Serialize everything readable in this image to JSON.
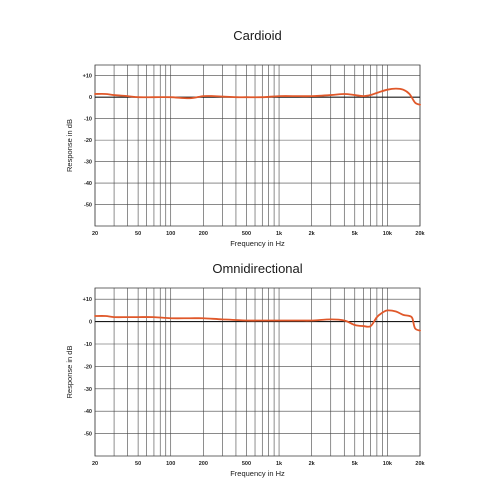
{
  "colors": {
    "curve": "#e0582a",
    "grid": "#444444",
    "zero_line": "#1a1a1a"
  },
  "chart_data": [
    {
      "type": "line",
      "title": "Cardioid",
      "xlabel": "Frequency in Hz",
      "ylabel": "Response in dB",
      "xscale": "log",
      "xlim": [
        20,
        20000
      ],
      "ylim": [
        -60,
        15
      ],
      "xticks": [
        20,
        50,
        100,
        200,
        500,
        1000,
        2000,
        5000,
        10000,
        20000
      ],
      "xtick_labels": [
        "20",
        "50",
        "100",
        "200",
        "500",
        "1k",
        "2k",
        "5k",
        "10k",
        "20k"
      ],
      "yticks": [
        10,
        0,
        -10,
        -20,
        -30,
        -40,
        -50
      ],
      "ytick_labels": [
        "+10",
        "0",
        "-10",
        "-20",
        "-30",
        "-40",
        "-50"
      ],
      "grid": true,
      "series": [
        {
          "x": [
            20,
            25,
            30,
            40,
            50,
            70,
            100,
            150,
            200,
            250,
            300,
            400,
            500,
            700,
            1000,
            1500,
            2000,
            3000,
            4000,
            5000,
            6000,
            7000,
            8000,
            10000,
            12000,
            14000,
            16000,
            18000,
            20000
          ],
          "y": [
            1.5,
            1.5,
            1.0,
            0.5,
            0.0,
            0.0,
            0.0,
            -0.5,
            0.5,
            0.5,
            0.3,
            0.0,
            0.0,
            0.0,
            0.5,
            0.5,
            0.5,
            1.0,
            1.5,
            1.0,
            0.5,
            1.0,
            2.0,
            3.5,
            4.0,
            3.5,
            1.5,
            -2.5,
            -3.5
          ]
        }
      ]
    },
    {
      "type": "line",
      "title": "Omnidirectional",
      "xlabel": "Frequency in Hz",
      "ylabel": "Response in dB",
      "xscale": "log",
      "xlim": [
        20,
        20000
      ],
      "ylim": [
        -60,
        15
      ],
      "xticks": [
        20,
        50,
        100,
        200,
        500,
        1000,
        2000,
        5000,
        10000,
        20000
      ],
      "xtick_labels": [
        "20",
        "50",
        "100",
        "200",
        "500",
        "1k",
        "2k",
        "5k",
        "10k",
        "20k"
      ],
      "yticks": [
        10,
        0,
        -10,
        -20,
        -30,
        -40,
        -50
      ],
      "ytick_labels": [
        "+10",
        "0",
        "-10",
        "-20",
        "-30",
        "-40",
        "-50"
      ],
      "grid": true,
      "series": [
        {
          "x": [
            20,
            25,
            30,
            40,
            50,
            70,
            100,
            150,
            200,
            300,
            500,
            700,
            1000,
            1500,
            2000,
            3000,
            4000,
            5000,
            6000,
            7000,
            8000,
            9000,
            10000,
            12000,
            14000,
            16000,
            17000,
            18000,
            20000
          ],
          "y": [
            2.5,
            2.5,
            2.0,
            2.0,
            2.0,
            2.0,
            1.5,
            1.5,
            1.5,
            1.0,
            0.5,
            0.5,
            0.5,
            0.5,
            0.5,
            1.0,
            0.5,
            -1.5,
            -2.0,
            -2.0,
            2.0,
            4.0,
            5.0,
            4.5,
            3.0,
            2.5,
            1.5,
            -3.0,
            -4.0
          ]
        }
      ]
    }
  ]
}
